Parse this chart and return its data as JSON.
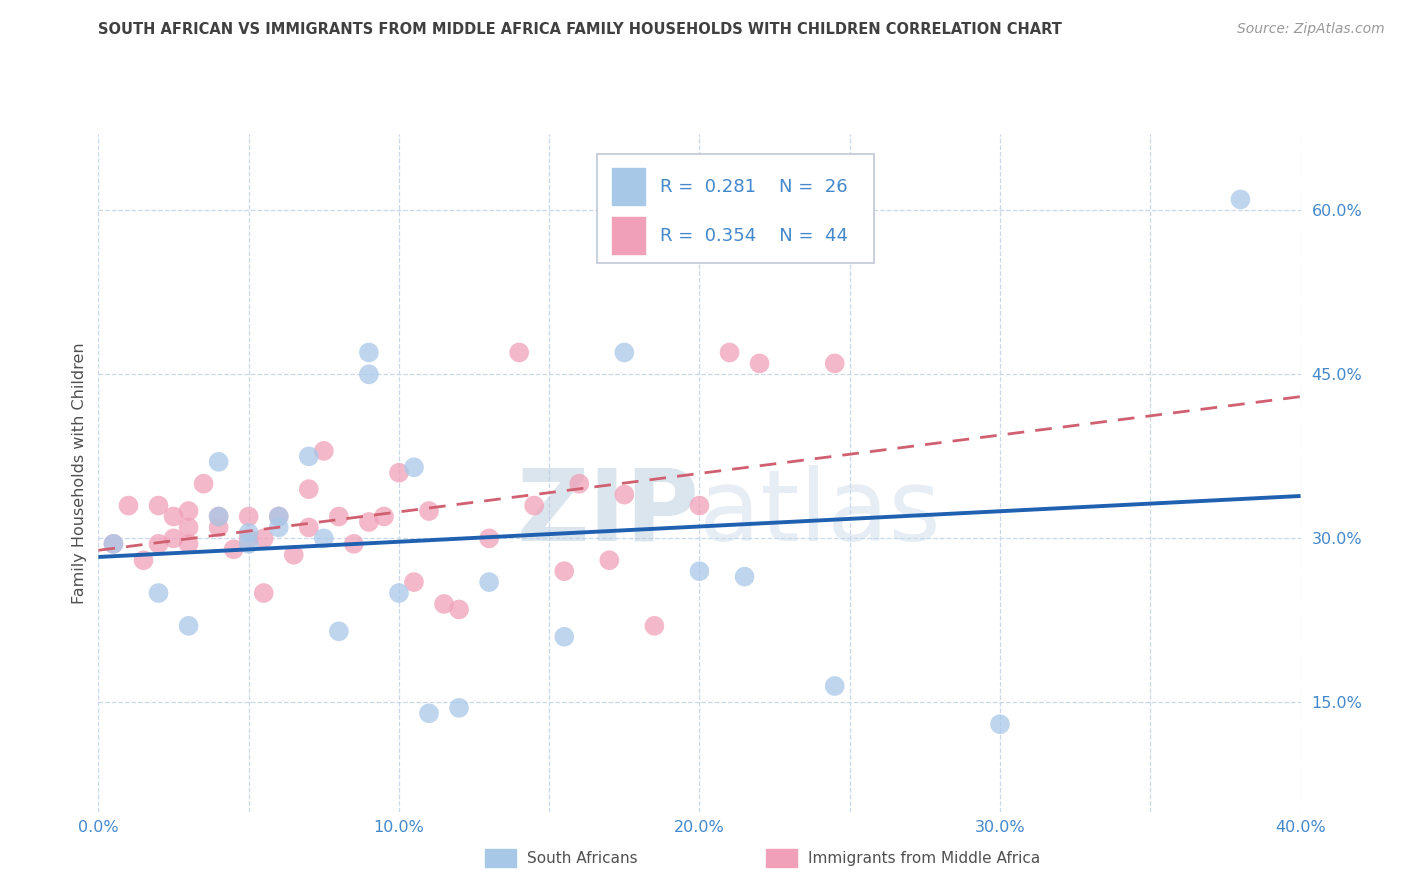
{
  "title": "SOUTH AFRICAN VS IMMIGRANTS FROM MIDDLE AFRICA FAMILY HOUSEHOLDS WITH CHILDREN CORRELATION CHART",
  "source": "Source: ZipAtlas.com",
  "ylabel": "Family Households with Children",
  "xmin": 0.0,
  "xmax": 0.4,
  "ymin": 0.05,
  "ymax": 0.67,
  "xtick_labels": [
    "0.0%",
    "",
    "10.0%",
    "",
    "20.0%",
    "",
    "30.0%",
    "",
    "40.0%"
  ],
  "xtick_values": [
    0.0,
    0.05,
    0.1,
    0.15,
    0.2,
    0.25,
    0.3,
    0.35,
    0.4
  ],
  "ytick_labels_right": [
    "60.0%",
    "45.0%",
    "30.0%",
    "15.0%"
  ],
  "ytick_values_right": [
    0.6,
    0.45,
    0.3,
    0.15
  ],
  "blue_color": "#A8C8E8",
  "pink_color": "#F0A0B8",
  "blue_line_color": "#2060B0",
  "pink_line_color": "#D06070",
  "R_blue": 0.281,
  "N_blue": 26,
  "R_pink": 0.354,
  "N_pink": 44,
  "blue_scatter_x": [
    0.005,
    0.02,
    0.03,
    0.04,
    0.04,
    0.05,
    0.05,
    0.06,
    0.06,
    0.07,
    0.075,
    0.08,
    0.09,
    0.09,
    0.1,
    0.105,
    0.11,
    0.12,
    0.13,
    0.155,
    0.175,
    0.2,
    0.215,
    0.245,
    0.3,
    0.38
  ],
  "blue_scatter_y": [
    0.295,
    0.25,
    0.22,
    0.37,
    0.32,
    0.305,
    0.295,
    0.32,
    0.31,
    0.375,
    0.3,
    0.215,
    0.47,
    0.45,
    0.25,
    0.365,
    0.14,
    0.145,
    0.26,
    0.21,
    0.47,
    0.27,
    0.265,
    0.165,
    0.13,
    0.61
  ],
  "pink_scatter_x": [
    0.005,
    0.01,
    0.015,
    0.02,
    0.02,
    0.025,
    0.025,
    0.03,
    0.03,
    0.03,
    0.035,
    0.04,
    0.04,
    0.045,
    0.05,
    0.05,
    0.055,
    0.055,
    0.06,
    0.065,
    0.07,
    0.07,
    0.075,
    0.08,
    0.085,
    0.09,
    0.095,
    0.1,
    0.105,
    0.11,
    0.115,
    0.12,
    0.13,
    0.14,
    0.145,
    0.155,
    0.16,
    0.17,
    0.175,
    0.185,
    0.2,
    0.21,
    0.22,
    0.245
  ],
  "pink_scatter_y": [
    0.295,
    0.33,
    0.28,
    0.33,
    0.295,
    0.3,
    0.32,
    0.295,
    0.31,
    0.325,
    0.35,
    0.31,
    0.32,
    0.29,
    0.3,
    0.32,
    0.3,
    0.25,
    0.32,
    0.285,
    0.31,
    0.345,
    0.38,
    0.32,
    0.295,
    0.315,
    0.32,
    0.36,
    0.26,
    0.325,
    0.24,
    0.235,
    0.3,
    0.47,
    0.33,
    0.27,
    0.35,
    0.28,
    0.34,
    0.22,
    0.33,
    0.47,
    0.46,
    0.46
  ],
  "background_color": "#FFFFFF",
  "plot_bg_color": "#FFFFFF",
  "grid_color": "#C8D8E8",
  "title_color": "#404040",
  "axis_label_color": "#505050",
  "tick_color_blue": "#4488CC",
  "legend_bg": "#FFFFFF",
  "legend_edge": "#C0C8D8"
}
